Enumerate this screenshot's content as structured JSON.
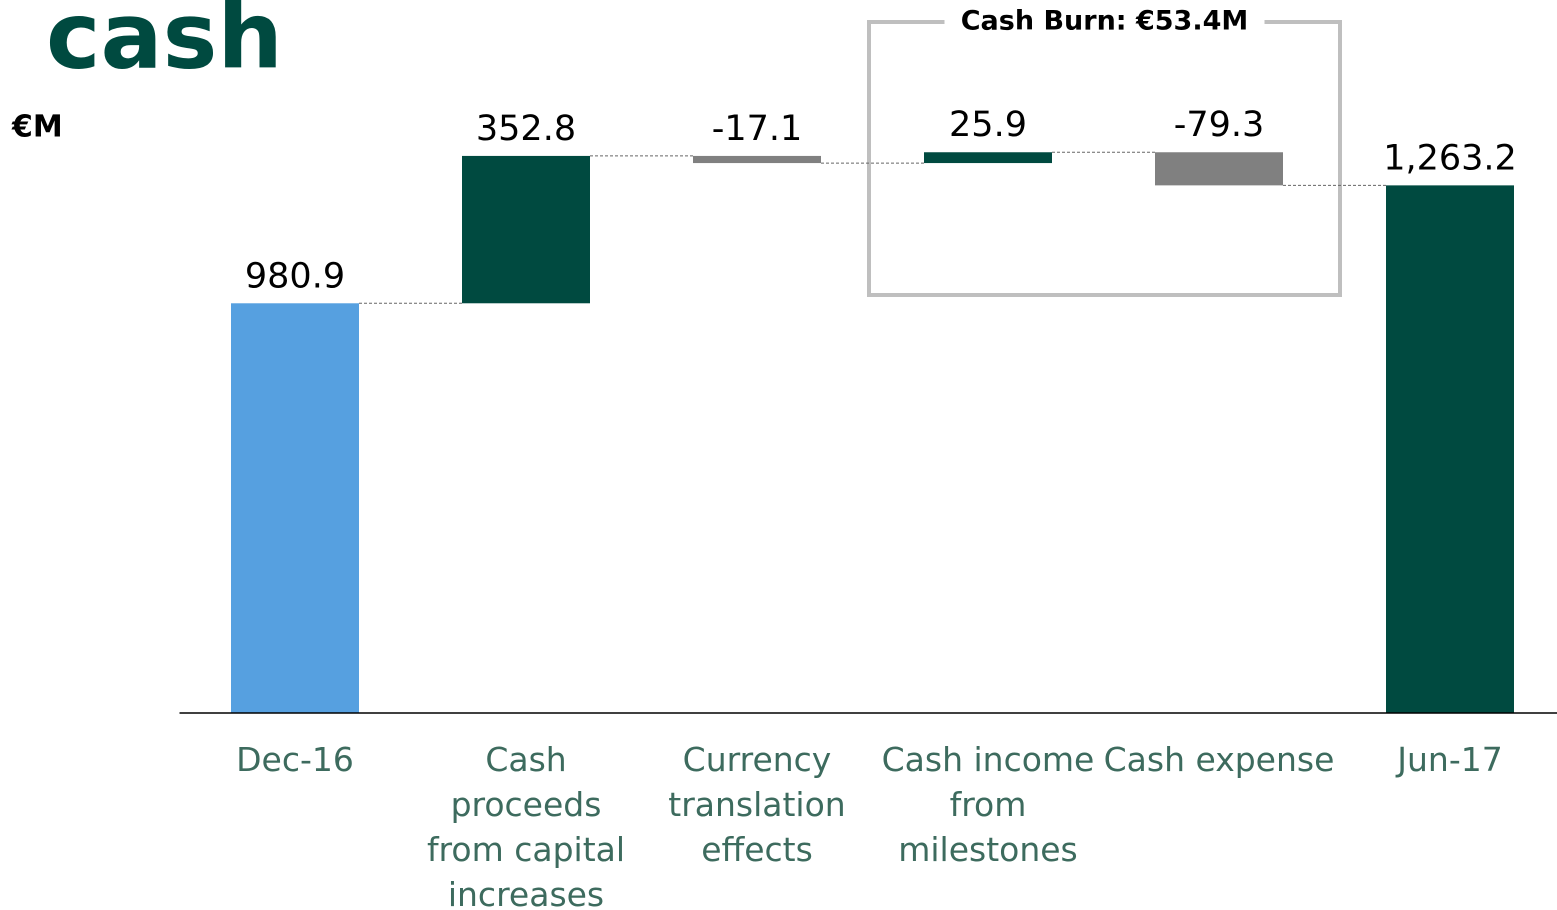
{
  "chart_data": {
    "type": "waterfall",
    "title": "cash",
    "y_label": "€M",
    "annotation": "Cash Burn: €53.4M",
    "categories": [
      "Dec-16",
      "Cash proceeds from capital increases",
      "Currency translation effects",
      "Cash income from milestones",
      "Cash expense",
      "Jun-17"
    ],
    "values": [
      980.9,
      352.8,
      -17.1,
      25.9,
      -79.3,
      1263.2
    ],
    "value_labels": [
      "980.9",
      "352.8",
      "-17.1",
      "25.9",
      "-79.3",
      "1,263.2"
    ],
    "measure": [
      "total",
      "relative",
      "relative",
      "relative",
      "relative",
      "total"
    ],
    "colors": [
      "#56a0e0",
      "#004a40",
      "#808080",
      "#004a40",
      "#808080",
      "#004a40"
    ],
    "ylim": [
      0,
      1300
    ]
  }
}
